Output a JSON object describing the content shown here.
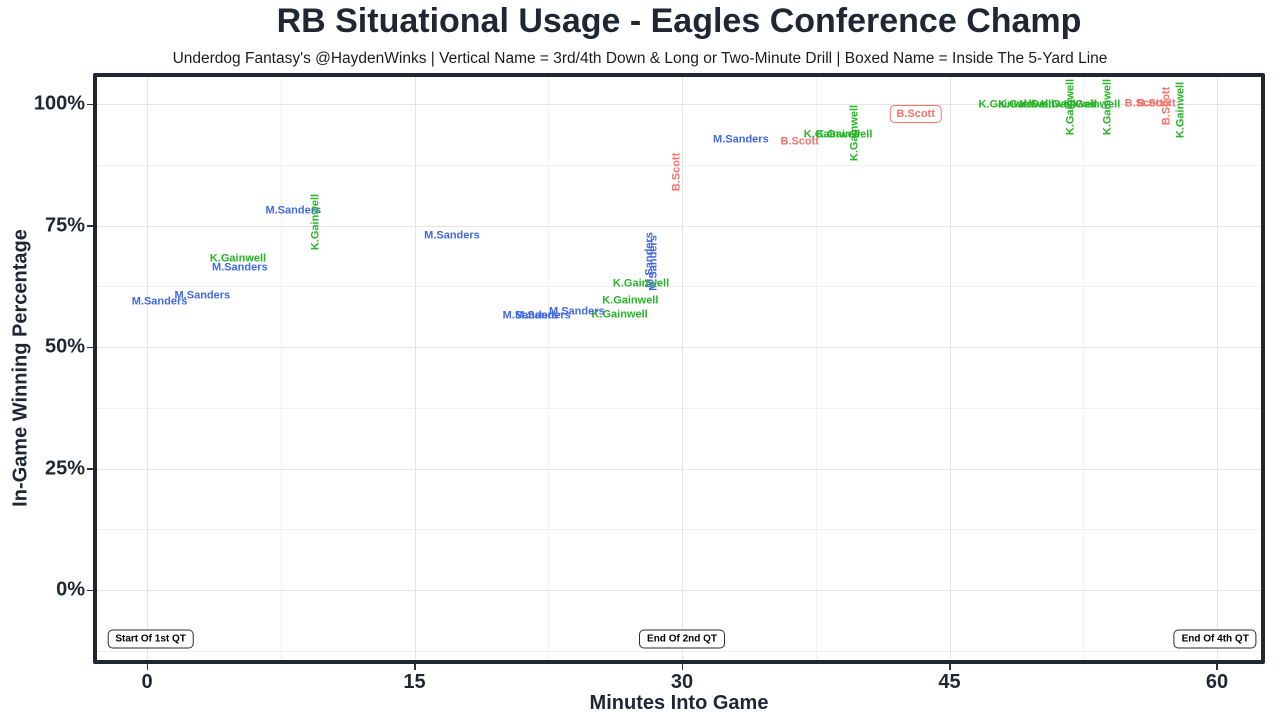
{
  "title": "RB Situational Usage - Eagles Conference Champ",
  "subtitle": "Underdog Fantasy's @HaydenWinks | Vertical Name = 3rd/4th Down & Long or Two-Minute Drill | Boxed Name = Inside The 5-Yard Line",
  "chart_data": {
    "type": "scatter",
    "title": "RB Situational Usage - Eagles Conference Champ",
    "xlabel": "Minutes Into Game",
    "ylabel": "In-Game Winning Percentage",
    "xlim": [
      -2.92,
      62.58
    ],
    "ylim": [
      -14.81,
      105.97
    ],
    "grid": "major+minor",
    "legend": "none",
    "x_ticks": {
      "major": [
        {
          "v": 0,
          "label": "0"
        },
        {
          "v": 15,
          "label": "15"
        },
        {
          "v": 30,
          "label": "30"
        },
        {
          "v": 45,
          "label": "45"
        },
        {
          "v": 60,
          "label": "60"
        }
      ],
      "minor": [
        7.5,
        22.5,
        37.5,
        52.5
      ]
    },
    "y_ticks": {
      "major": [
        {
          "v": 0,
          "label": "0%"
        },
        {
          "v": 25,
          "label": "25%"
        },
        {
          "v": 50,
          "label": "50%"
        },
        {
          "v": 75,
          "label": "75%"
        },
        {
          "v": 100,
          "label": "100%"
        }
      ],
      "minor": [
        -12.5,
        12.5,
        37.5,
        62.5,
        87.5
      ]
    },
    "colors": {
      "M.Sanders": "#4169e1",
      "K.Gainwell": "#28b428",
      "B.Scott": "#f4736b"
    },
    "points": [
      {
        "player": "M.Sanders",
        "x": 8.2,
        "y": 78.0,
        "orient": "h"
      },
      {
        "player": "K.Gainwell",
        "x": 9.5,
        "y": 75.7,
        "orient": "v"
      },
      {
        "player": "M.Sanders",
        "x": 17.1,
        "y": 72.8,
        "orient": "h"
      },
      {
        "player": "K.Gainwell",
        "x": 5.1,
        "y": 68.1,
        "orient": "h"
      },
      {
        "player": "M.Sanders",
        "x": 5.2,
        "y": 66.3,
        "orient": "h"
      },
      {
        "player": "M.Sanders",
        "x": 3.1,
        "y": 60.5,
        "orient": "h"
      },
      {
        "player": "M.Sanders",
        "x": 0.7,
        "y": 59.3,
        "orient": "h"
      },
      {
        "player": "M.Sanders",
        "x": 28.2,
        "y": 67.9,
        "orient": "v"
      },
      {
        "player": "M.Sanders",
        "x": 28.4,
        "y": 67.3,
        "orient": "v"
      },
      {
        "player": "K.Gainwell",
        "x": 27.7,
        "y": 63.0,
        "orient": "h"
      },
      {
        "player": "K.Gainwell",
        "x": 27.1,
        "y": 59.4,
        "orient": "h"
      },
      {
        "player": "K.Gainwell",
        "x": 26.5,
        "y": 56.6,
        "orient": "h"
      },
      {
        "player": "M.Sanders",
        "x": 21.5,
        "y": 56.4,
        "orient": "h"
      },
      {
        "player": "M.Sanders",
        "x": 22.2,
        "y": 56.4,
        "orient": "h"
      },
      {
        "player": "M.Sanders",
        "x": 24.1,
        "y": 57.2,
        "orient": "h"
      },
      {
        "player": "B.Scott",
        "x": 29.7,
        "y": 86.0,
        "orient": "v"
      },
      {
        "player": "M.Sanders",
        "x": 33.3,
        "y": 92.6,
        "orient": "h"
      },
      {
        "player": "B.Scott",
        "x": 36.6,
        "y": 92.2,
        "orient": "h"
      },
      {
        "player": "K.Gainwell",
        "x": 38.4,
        "y": 93.6,
        "orient": "h"
      },
      {
        "player": "K.Gainwell",
        "x": 39.1,
        "y": 93.6,
        "orient": "h"
      },
      {
        "player": "K.Gainwell",
        "x": 39.7,
        "y": 94.0,
        "orient": "v"
      },
      {
        "player": "B.Scott",
        "x": 43.1,
        "y": 97.9,
        "orient": "h",
        "boxed": true
      },
      {
        "player": "K.Gainwell",
        "x": 48.2,
        "y": 99.8,
        "orient": "h"
      },
      {
        "player": "K.Gainwell",
        "x": 49.3,
        "y": 99.8,
        "orient": "h"
      },
      {
        "player": "K.Gainwell",
        "x": 50.5,
        "y": 99.8,
        "orient": "h"
      },
      {
        "player": "K.Gainwell",
        "x": 51.7,
        "y": 99.8,
        "orient": "h"
      },
      {
        "player": "K.Gainwell",
        "x": 53.0,
        "y": 99.8,
        "orient": "h"
      },
      {
        "player": "K.Gainwell",
        "x": 51.8,
        "y": 99.4,
        "orient": "v"
      },
      {
        "player": "K.Gainwell",
        "x": 53.9,
        "y": 99.4,
        "orient": "v"
      },
      {
        "player": "B.Scott",
        "x": 55.9,
        "y": 100.1,
        "orient": "h"
      },
      {
        "player": "B.Scott",
        "x": 56.6,
        "y": 100.1,
        "orient": "h"
      },
      {
        "player": "B.Scott",
        "x": 57.2,
        "y": 99.6,
        "orient": "v"
      },
      {
        "player": "K.Gainwell",
        "x": 58.0,
        "y": 98.8,
        "orient": "v"
      }
    ],
    "annotations": [
      {
        "label": "Start Of 1st QT",
        "x": 0.2,
        "y": -10.1
      },
      {
        "label": "End Of 2nd QT",
        "x": 30.0,
        "y": -10.1
      },
      {
        "label": "End Of 4th QT",
        "x": 59.9,
        "y": -10.1
      }
    ]
  }
}
